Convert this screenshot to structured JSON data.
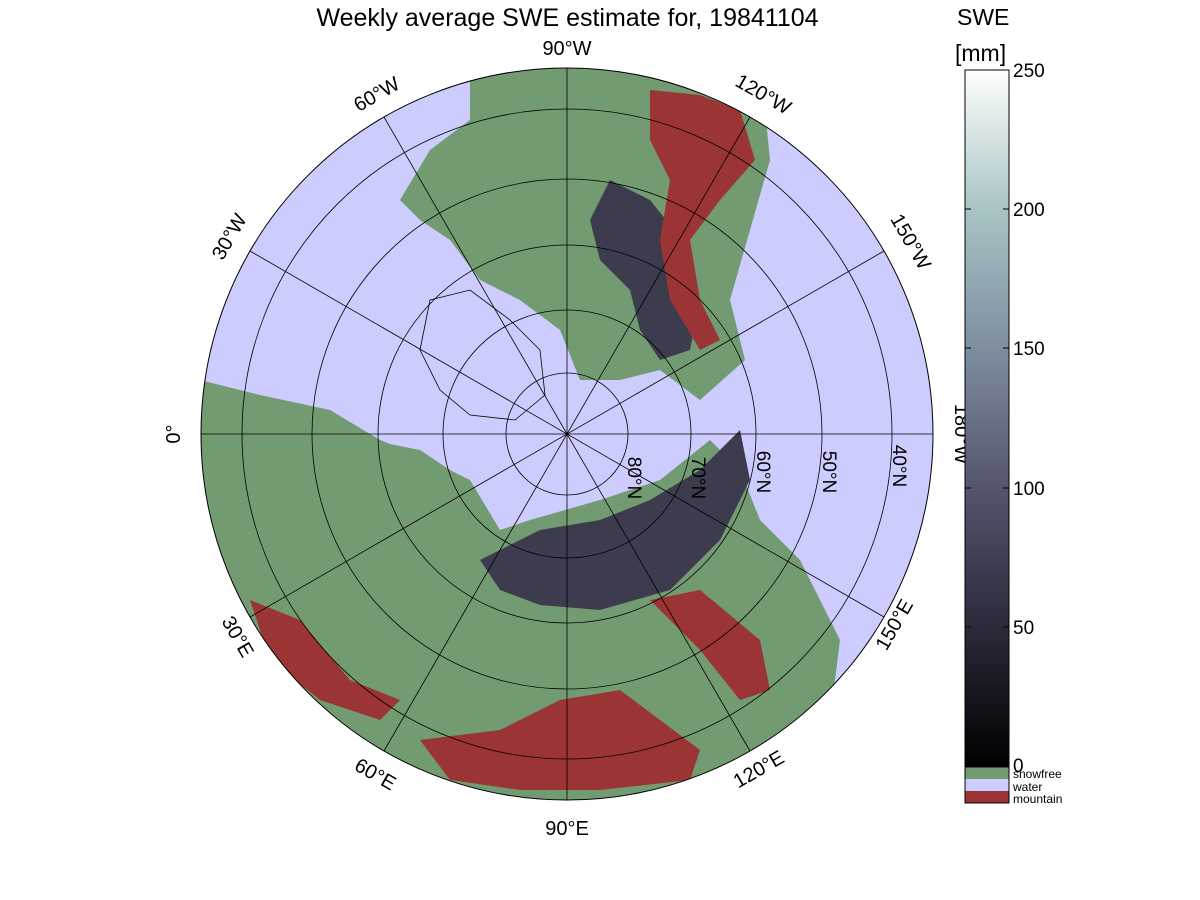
{
  "title": "Weekly average SWE estimate for, 19841104",
  "colorbar": {
    "title": "SWE",
    "unit": "[mm]",
    "ticks": [
      "250",
      "200",
      "150",
      "100",
      "50",
      "0"
    ],
    "range": [
      0,
      250
    ],
    "colormap": "bone"
  },
  "legend": [
    {
      "label": "snowfree",
      "color": "#739b72"
    },
    {
      "label": "water",
      "color": "#ccccff"
    },
    {
      "label": "mountain",
      "color": "#9b3434"
    }
  ],
  "map": {
    "projection": "north polar stereographic",
    "ocean_color": "#ccccff",
    "snowfree_color": "#739b72",
    "mountain_color": "#9b3434",
    "longitude_labels": [
      {
        "label": "90°W",
        "lon": "90W"
      },
      {
        "label": "120°W",
        "lon": "120W"
      },
      {
        "label": "150°W",
        "lon": "150W"
      },
      {
        "label": "180°W",
        "lon": "180W"
      },
      {
        "label": "150°E",
        "lon": "150E"
      },
      {
        "label": "120°E",
        "lon": "120E"
      },
      {
        "label": "90°E",
        "lon": "90E"
      },
      {
        "label": "60°E",
        "lon": "60E"
      },
      {
        "label": "30°E",
        "lon": "30E"
      },
      {
        "label": "0°",
        "lon": "0"
      },
      {
        "label": "30°W",
        "lon": "30W"
      },
      {
        "label": "60°W",
        "lon": "60W"
      }
    ],
    "latitude_labels": [
      {
        "label": "80°N",
        "lat": 80
      },
      {
        "label": "70°N",
        "lat": 70
      },
      {
        "label": "60°N",
        "lat": 60
      },
      {
        "label": "50°N",
        "lat": 50
      },
      {
        "label": "40°N",
        "lat": 40
      }
    ]
  }
}
